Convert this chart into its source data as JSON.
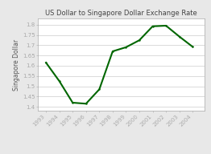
{
  "title": "US Dollar to Singapore Dollar Exchange Rate",
  "ylabel": "Singapore Dollar",
  "years": [
    1993,
    1994,
    1995,
    1996,
    1997,
    1998,
    1999,
    2000,
    2001,
    2002,
    2003,
    2004
  ],
  "values": [
    1.615,
    1.525,
    1.42,
    1.415,
    1.485,
    1.67,
    1.69,
    1.724,
    1.792,
    1.795,
    1.742,
    1.692
  ],
  "line_color": "#006600",
  "background_color": "#e8e8e8",
  "plot_bg_color": "#ffffff",
  "ylim": [
    1.38,
    1.83
  ],
  "yticks": [
    1.4,
    1.45,
    1.5,
    1.55,
    1.6,
    1.65,
    1.7,
    1.75,
    1.8
  ],
  "title_fontsize": 6.0,
  "label_fontsize": 5.5,
  "tick_fontsize": 5.0,
  "linewidth": 1.5
}
